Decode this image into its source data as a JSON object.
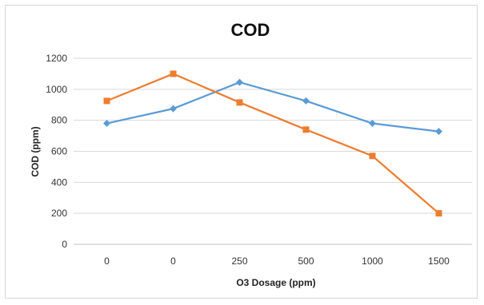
{
  "chart_data": {
    "type": "line",
    "title": "COD",
    "xlabel": "O3 Dosage (ppm)",
    "ylabel": "COD (ppm)",
    "categories": [
      "0",
      "0",
      "250",
      "500",
      "1000",
      "1500"
    ],
    "ylim": [
      0,
      1200
    ],
    "yticks": [
      "0",
      "200",
      "400",
      "600",
      "800",
      "1000",
      "1200"
    ],
    "grid": true,
    "legend": "none",
    "series": [
      {
        "values": [
          780,
          875,
          1045,
          925,
          780,
          728
        ],
        "color": "#5b9bd5",
        "marker": "diamond"
      },
      {
        "values": [
          925,
          1100,
          915,
          740,
          570,
          200
        ],
        "color": "#ed7d31",
        "marker": "square"
      }
    ]
  }
}
